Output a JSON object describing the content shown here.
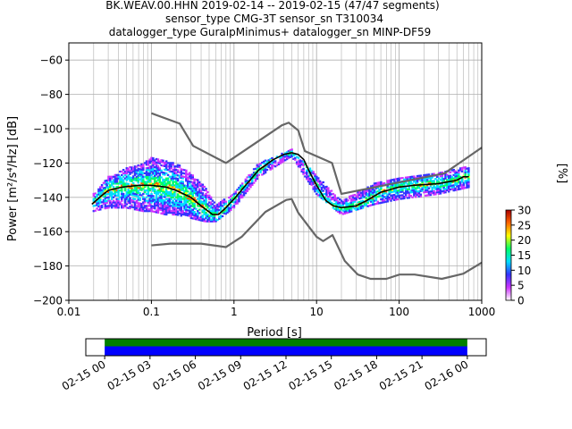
{
  "title": {
    "line1": "BK.WEAV.00.HHN   2019-02-14 -- 2019-02-15  (47/47 segments)",
    "line2": "sensor_type CMG-3T sensor_sn T310034",
    "line3": "datalogger_type GuralpMinimus+ datalogger_sn MINP-DF59"
  },
  "chart_data": {
    "type": "line",
    "xlabel": "Period [s]",
    "ylabel": "Power [m²/s⁴/Hz] [dB]",
    "x_scale": "log",
    "xlim": [
      0.01,
      1000
    ],
    "ylim": [
      -200,
      -50
    ],
    "x_ticks": [
      {
        "v": 0.01,
        "label": "0.01"
      },
      {
        "v": 0.1,
        "label": "0.1"
      },
      {
        "v": 1,
        "label": "1"
      },
      {
        "v": 10,
        "label": "10"
      },
      {
        "v": 100,
        "label": "100"
      },
      {
        "v": 1000,
        "label": "1000"
      }
    ],
    "y_ticks": [
      {
        "v": -60,
        "label": "−60"
      },
      {
        "v": -80,
        "label": "−80"
      },
      {
        "v": -100,
        "label": "−100"
      },
      {
        "v": -120,
        "label": "−120"
      },
      {
        "v": -140,
        "label": "−140"
      },
      {
        "v": -160,
        "label": "−160"
      },
      {
        "v": -180,
        "label": "−180"
      },
      {
        "v": -200,
        "label": "−200"
      }
    ],
    "grid": true,
    "noise_model_high": [
      [
        0.1,
        -91
      ],
      [
        0.22,
        -97
      ],
      [
        0.32,
        -110
      ],
      [
        0.8,
        -120
      ],
      [
        3.8,
        -98
      ],
      [
        4.6,
        -96.5
      ],
      [
        6,
        -101
      ],
      [
        7.2,
        -113
      ],
      [
        15.4,
        -120
      ],
      [
        20,
        -138
      ],
      [
        354,
        -126
      ],
      [
        1000,
        -111
      ]
    ],
    "noise_model_low": [
      [
        0.1,
        -168
      ],
      [
        0.17,
        -167
      ],
      [
        0.4,
        -167
      ],
      [
        0.8,
        -169
      ],
      [
        1.24,
        -163
      ],
      [
        2.4,
        -148.5
      ],
      [
        4.3,
        -141.5
      ],
      [
        5,
        -141
      ],
      [
        6,
        -149
      ],
      [
        10,
        -163
      ],
      [
        12,
        -165.5
      ],
      [
        15.6,
        -162
      ],
      [
        21.9,
        -177
      ],
      [
        31.6,
        -185
      ],
      [
        45,
        -187.5
      ],
      [
        70,
        -187.5
      ],
      [
        101,
        -185
      ],
      [
        154,
        -185
      ],
      [
        328,
        -187.5
      ],
      [
        600,
        -184.5
      ],
      [
        1000,
        -178
      ]
    ],
    "mode": [
      [
        0.019,
        -144
      ],
      [
        0.025,
        -139
      ],
      [
        0.03,
        -136
      ],
      [
        0.045,
        -134
      ],
      [
        0.07,
        -133
      ],
      [
        0.1,
        -133
      ],
      [
        0.15,
        -134
      ],
      [
        0.2,
        -136
      ],
      [
        0.3,
        -140
      ],
      [
        0.4,
        -145
      ],
      [
        0.55,
        -150
      ],
      [
        0.65,
        -150
      ],
      [
        0.8,
        -146
      ],
      [
        1.0,
        -141
      ],
      [
        1.5,
        -131
      ],
      [
        2.0,
        -124
      ],
      [
        3.0,
        -118
      ],
      [
        4.0,
        -115
      ],
      [
        5.0,
        -114
      ],
      [
        6.0,
        -115
      ],
      [
        7.0,
        -118
      ],
      [
        8.0,
        -124
      ],
      [
        10,
        -133
      ],
      [
        13,
        -142
      ],
      [
        16,
        -145
      ],
      [
        20,
        -146
      ],
      [
        30,
        -145
      ],
      [
        40,
        -142
      ],
      [
        60,
        -137
      ],
      [
        100,
        -134
      ],
      [
        150,
        -133
      ],
      [
        300,
        -132
      ],
      [
        500,
        -130
      ],
      [
        600,
        -128
      ],
      [
        700,
        -128
      ]
    ],
    "psd_density": [
      {
        "period": 0.02,
        "db_min": -148,
        "db_max": -138
      },
      {
        "period": 0.03,
        "db_min": -146,
        "db_max": -128
      },
      {
        "period": 0.05,
        "db_min": -146,
        "db_max": -123
      },
      {
        "period": 0.08,
        "db_min": -148,
        "db_max": -120
      },
      {
        "period": 0.1,
        "db_min": -148,
        "db_max": -117
      },
      {
        "period": 0.15,
        "db_min": -150,
        "db_max": -118
      },
      {
        "period": 0.2,
        "db_min": -150,
        "db_max": -120
      },
      {
        "period": 0.3,
        "db_min": -152,
        "db_max": -126
      },
      {
        "period": 0.45,
        "db_min": -154,
        "db_max": -134
      },
      {
        "period": 0.6,
        "db_min": -154,
        "db_max": -144
      },
      {
        "period": 1.0,
        "db_min": -146,
        "db_max": -138
      },
      {
        "period": 2.0,
        "db_min": -128,
        "db_max": -120
      },
      {
        "period": 5.0,
        "db_min": -116,
        "db_max": -112
      },
      {
        "period": 10,
        "db_min": -138,
        "db_max": -127
      },
      {
        "period": 20,
        "db_min": -150,
        "db_max": -142
      },
      {
        "period": 50,
        "db_min": -144,
        "db_max": -132
      },
      {
        "period": 100,
        "db_min": -141,
        "db_max": -128
      },
      {
        "period": 300,
        "db_min": -138,
        "db_max": -126
      },
      {
        "period": 700,
        "db_min": -134,
        "db_max": -122
      }
    ],
    "colorbar": {
      "label": "[%]",
      "range": [
        0,
        30
      ],
      "ticks": [
        {
          "v": 0,
          "label": "0"
        },
        {
          "v": 5,
          "label": "5"
        },
        {
          "v": 10,
          "label": "10"
        },
        {
          "v": 15,
          "label": "15"
        },
        {
          "v": 20,
          "label": "20"
        },
        {
          "v": 25,
          "label": "25"
        },
        {
          "v": 30,
          "label": "30"
        }
      ],
      "colors": [
        "#ffffff",
        "#cc33ff",
        "#3333ff",
        "#00ddff",
        "#00ff66",
        "#ffff00",
        "#ff6600",
        "#aa0000"
      ]
    },
    "timeline": {
      "ticks": [
        "02-15 00",
        "02-15 03",
        "02-15 06",
        "02-15 09",
        "02-15 12",
        "02-15 15",
        "02-15 18",
        "02-15 21",
        "02-16 00"
      ],
      "tick_hours": [
        0,
        3,
        6,
        9,
        12,
        15,
        18,
        21,
        24
      ],
      "axis_range_hours": [
        -1.25,
        25.25
      ],
      "coverage_hours": [
        0,
        24
      ],
      "bar_colors": [
        "#008000",
        "#0000ff"
      ]
    },
    "colors": {
      "noise_model": "#666666",
      "mode": "#000000"
    }
  }
}
